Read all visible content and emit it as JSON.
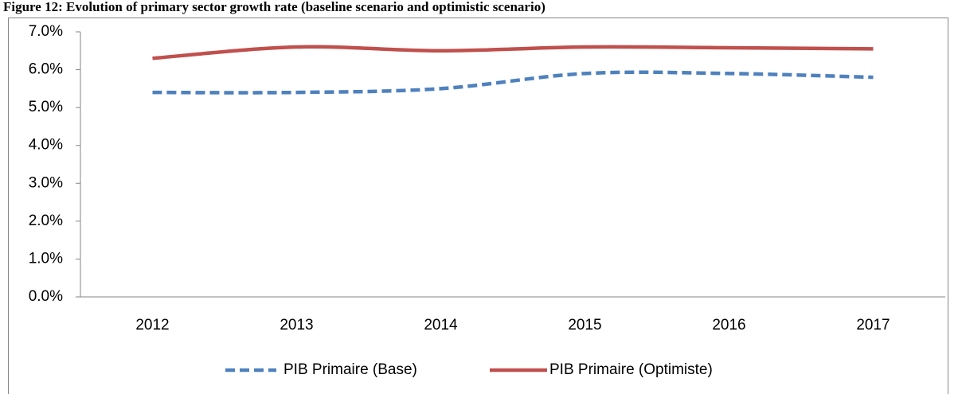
{
  "chart_data": {
    "type": "line",
    "title": "Figure 12: Evolution of primary sector growth rate (baseline scenario and optimistic scenario)",
    "categories": [
      "2012",
      "2013",
      "2014",
      "2015",
      "2016",
      "2017"
    ],
    "series": [
      {
        "name": "PIB Primaire (Base)",
        "color": "#4f81bd",
        "dashed": true,
        "values": [
          5.4,
          5.4,
          5.5,
          5.9,
          5.9,
          5.8
        ]
      },
      {
        "name": "PIB Primaire (Optimiste)",
        "color": "#c0504d",
        "dashed": false,
        "values": [
          6.3,
          6.6,
          6.5,
          6.6,
          6.58,
          6.55
        ]
      }
    ],
    "ylim": [
      0,
      7
    ],
    "yticks": [
      {
        "value": 0,
        "label": "0.0%"
      },
      {
        "value": 1,
        "label": "1.0%"
      },
      {
        "value": 2,
        "label": "2.0%"
      },
      {
        "value": 3,
        "label": "3.0%"
      },
      {
        "value": 4,
        "label": "4.0%"
      },
      {
        "value": 5,
        "label": "5.0%"
      },
      {
        "value": 6,
        "label": "6.0%"
      },
      {
        "value": 7,
        "label": "7.0%"
      }
    ],
    "grid": false,
    "smooth": true,
    "legend": "bottom"
  }
}
